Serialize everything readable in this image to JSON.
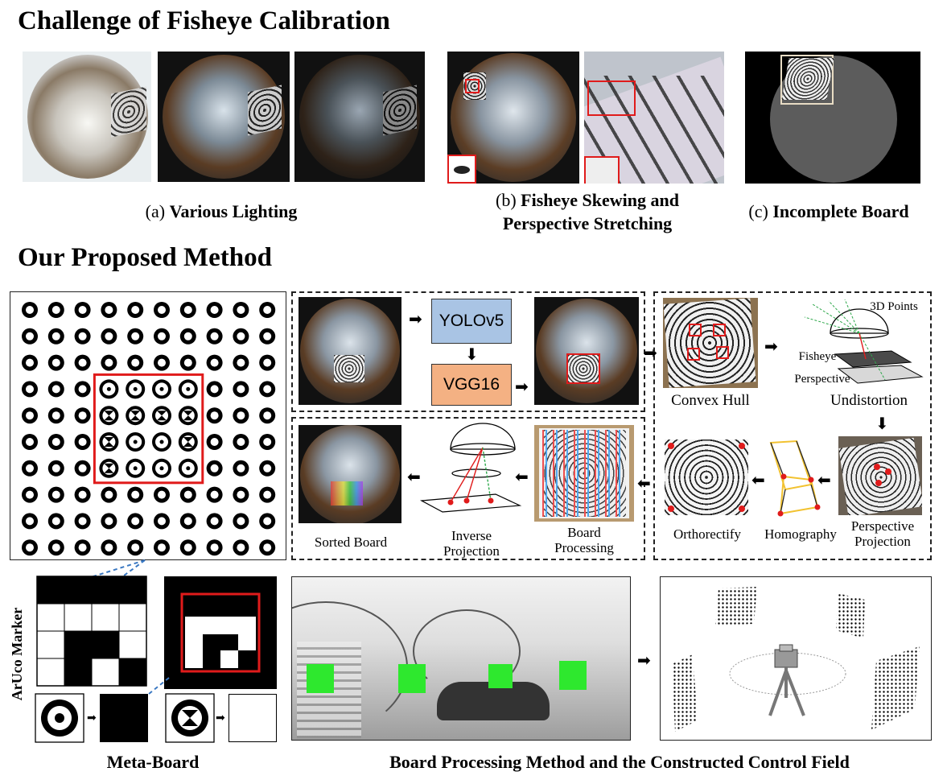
{
  "headings": {
    "challenge": "Challenge of Fisheye Calibration",
    "method": "Our Proposed Method"
  },
  "captions": {
    "a_prefix": "(a)",
    "a_bold": "Various Lighting",
    "b_prefix": "(b)",
    "b_bold_line1": "Fisheye Skewing and",
    "b_bold_line2": "Perspective Stretching",
    "c_prefix": "(c)",
    "c_bold": "Incomplete Board"
  },
  "pipeline": {
    "detector": "YOLOv5",
    "classifier": "VGG16",
    "convex_hull": "Convex Hull",
    "undistortion": "Undistortion",
    "points_3d": "3D Points",
    "fisheye": "Fisheye",
    "perspective": "Perspective",
    "sorted_board": "Sorted Board",
    "inverse_projection_1": "Inverse",
    "inverse_projection_2": "Projection",
    "board_processing_1": "Board",
    "board_processing_2": "Processing",
    "orthorectify": "Orthorectify",
    "homography": "Homography",
    "perspective_projection_1": "Perspective",
    "perspective_projection_2": "Projection"
  },
  "bottom": {
    "aruco_marker": "ArUco Marker",
    "meta_board": "Meta-Board",
    "control_field": "Board Processing Method and the Constructed Control Field"
  },
  "colors": {
    "yolo_fill": "#a9c4e4",
    "vgg_fill": "#f4b183",
    "highlight_red": "#e01b1b",
    "detection_green": "#2ee82e",
    "link_blue": "#3a78c2"
  }
}
